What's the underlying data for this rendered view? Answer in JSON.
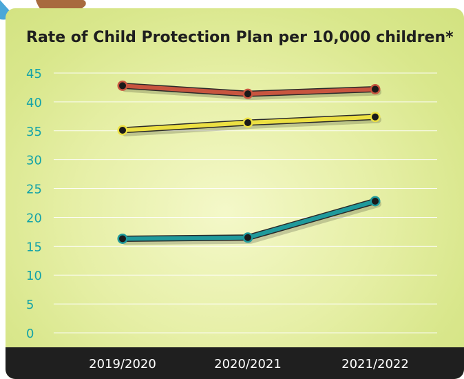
{
  "chart_data": {
    "type": "line",
    "title": "Rate of Child Protection Plan per 10,000 children*",
    "categories": [
      "2019/2020",
      "2020/2021",
      "2021/2022"
    ],
    "ylim": [
      0,
      45
    ],
    "yticks": [
      0,
      5,
      10,
      15,
      20,
      25,
      30,
      35,
      40,
      45
    ],
    "grid": true,
    "series": [
      {
        "color": "#c8553f",
        "values": [
          42.8,
          41.4,
          42.2
        ]
      },
      {
        "color": "#ece043",
        "values": [
          35.1,
          36.4,
          37.4
        ]
      },
      {
        "color": "#1f9a9c",
        "values": [
          16.3,
          16.5,
          22.8
        ]
      }
    ],
    "colors": {
      "axis_text": "#14a3a8",
      "footer": "#1f1f1f",
      "footer_text": "#ffffff"
    }
  }
}
